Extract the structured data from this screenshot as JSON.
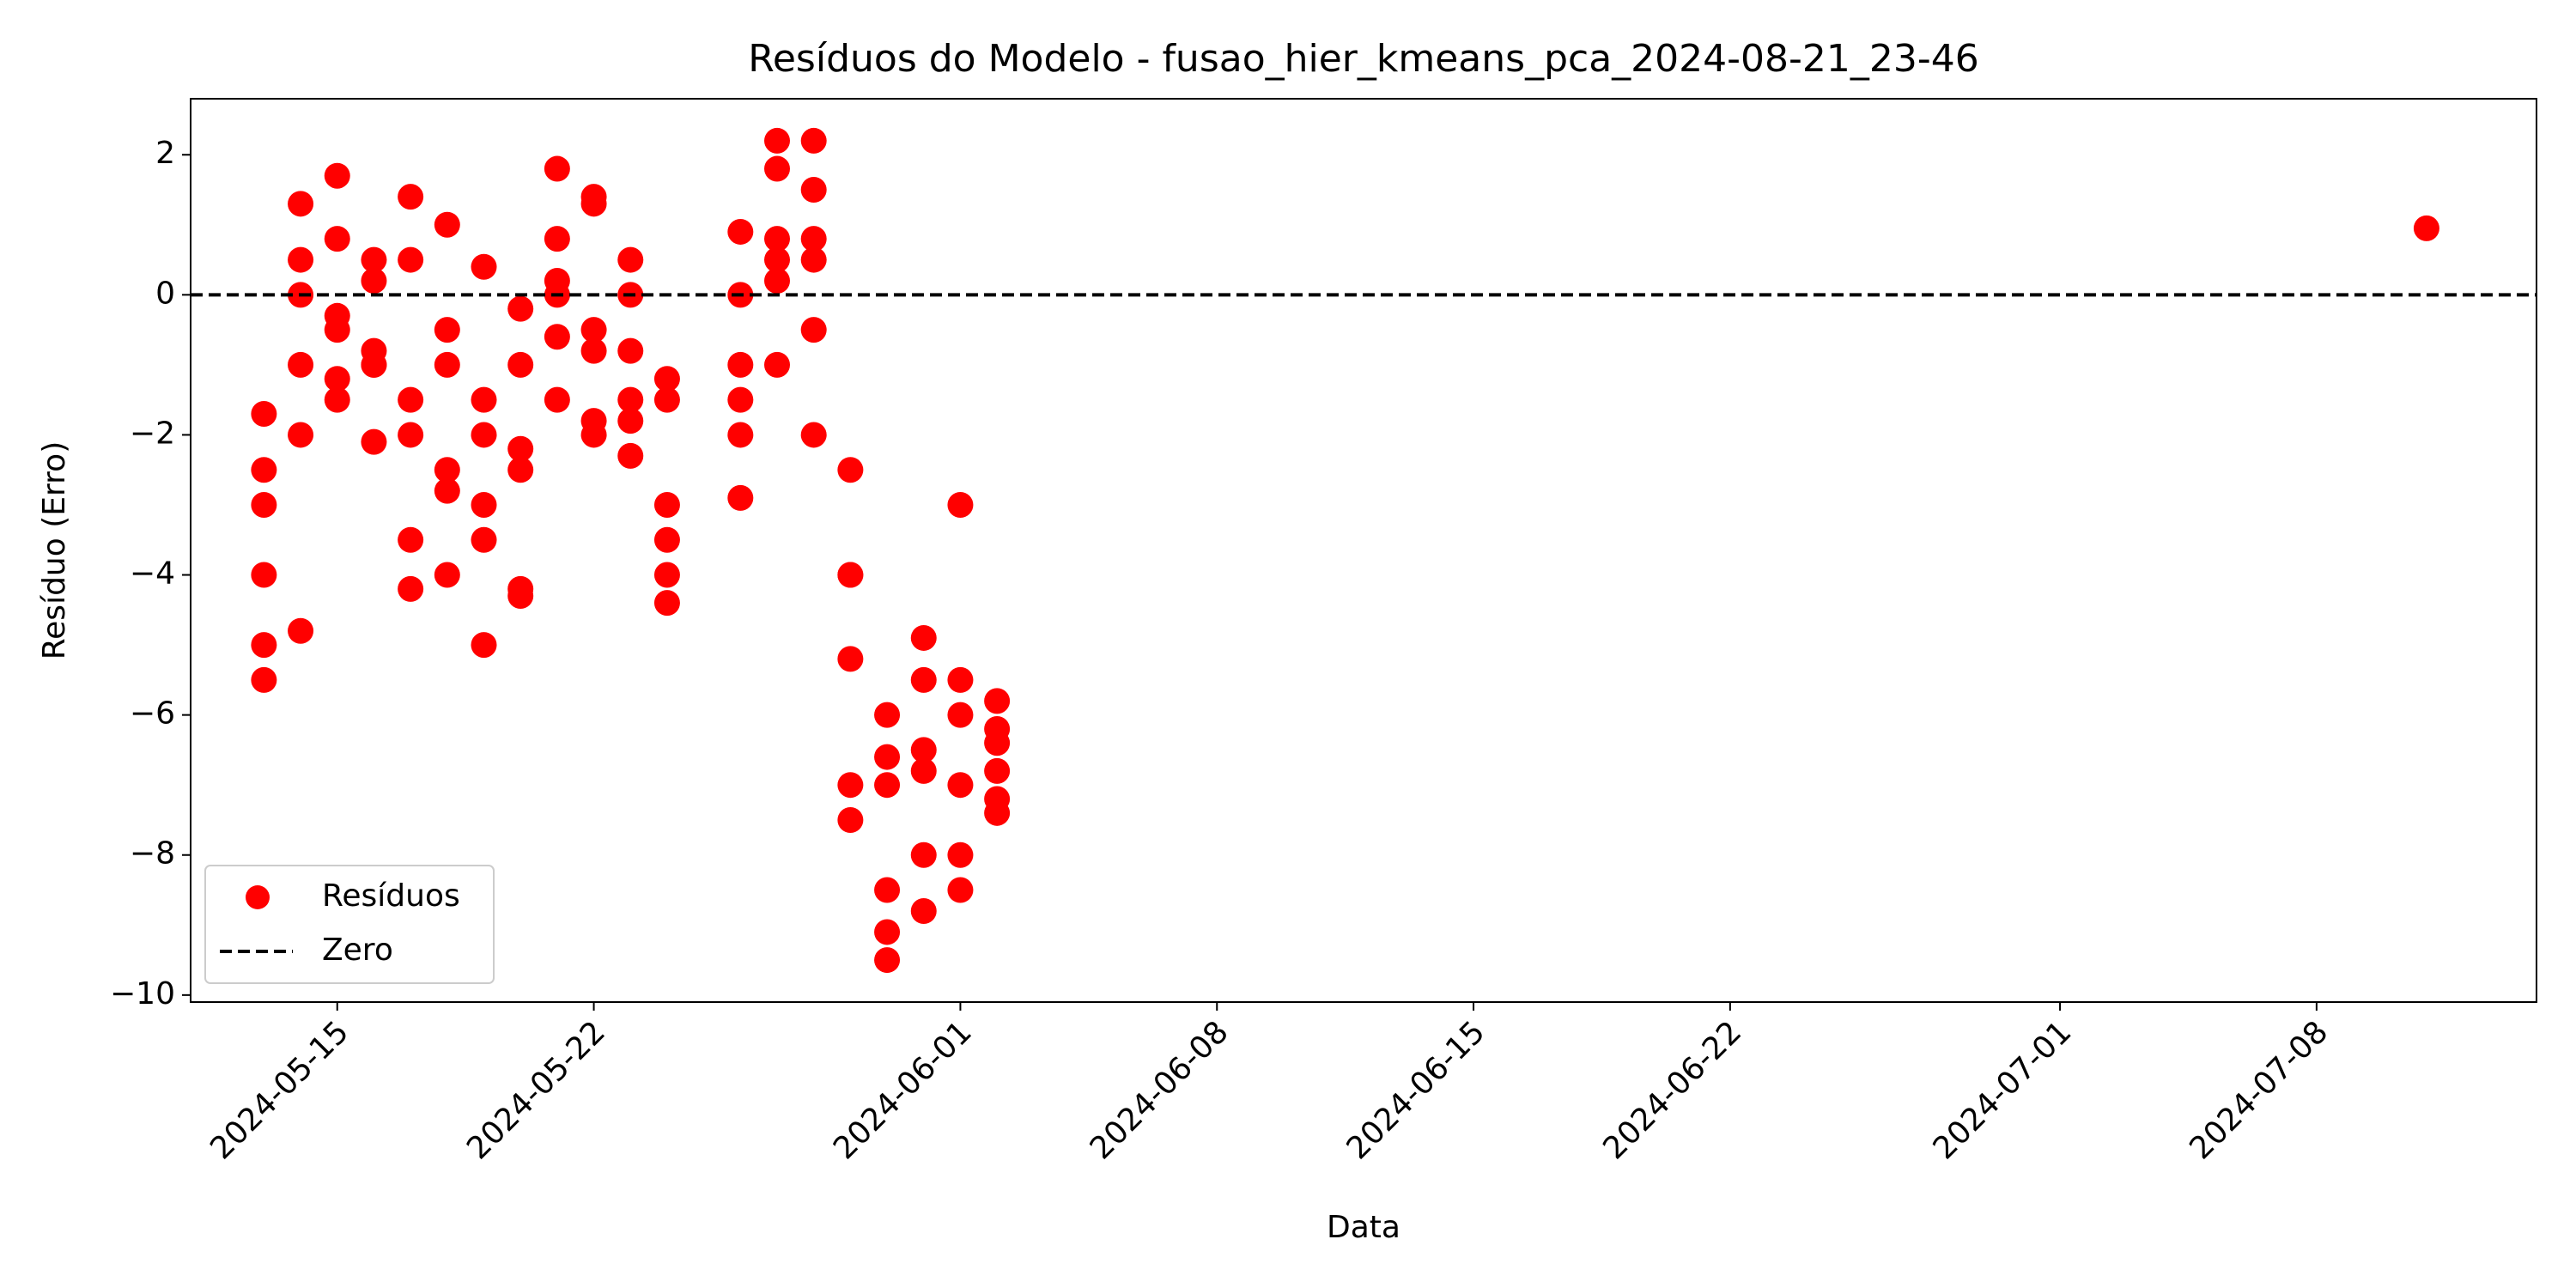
{
  "chart_data": {
    "type": "scatter",
    "title": "Resíduos do Modelo - fusao_hier_kmeans_pca_2024-08-21_23-46",
    "xlabel": "Data",
    "ylabel": "Resíduo (Erro)",
    "x": [
      "2024-05-13",
      "2024-05-13",
      "2024-05-13",
      "2024-05-13",
      "2024-05-13",
      "2024-05-13",
      "2024-05-14",
      "2024-05-14",
      "2024-05-14",
      "2024-05-14",
      "2024-05-14",
      "2024-05-14",
      "2024-05-15",
      "2024-05-15",
      "2024-05-15",
      "2024-05-15",
      "2024-05-15",
      "2024-05-15",
      "2024-05-16",
      "2024-05-16",
      "2024-05-16",
      "2024-05-16",
      "2024-05-16",
      "2024-05-16",
      "2024-05-17",
      "2024-05-17",
      "2024-05-17",
      "2024-05-17",
      "2024-05-17",
      "2024-05-17",
      "2024-05-18",
      "2024-05-18",
      "2024-05-18",
      "2024-05-18",
      "2024-05-18",
      "2024-05-18",
      "2024-05-19",
      "2024-05-19",
      "2024-05-19",
      "2024-05-19",
      "2024-05-19",
      "2024-05-19",
      "2024-05-20",
      "2024-05-20",
      "2024-05-20",
      "2024-05-20",
      "2024-05-20",
      "2024-05-20",
      "2024-05-21",
      "2024-05-21",
      "2024-05-21",
      "2024-05-21",
      "2024-05-21",
      "2024-05-21",
      "2024-05-22",
      "2024-05-22",
      "2024-05-22",
      "2024-05-22",
      "2024-05-22",
      "2024-05-22",
      "2024-05-23",
      "2024-05-23",
      "2024-05-23",
      "2024-05-23",
      "2024-05-23",
      "2024-05-23",
      "2024-05-24",
      "2024-05-24",
      "2024-05-24",
      "2024-05-24",
      "2024-05-24",
      "2024-05-24",
      "2024-05-26",
      "2024-05-26",
      "2024-05-26",
      "2024-05-26",
      "2024-05-26",
      "2024-05-26",
      "2024-05-27",
      "2024-05-27",
      "2024-05-27",
      "2024-05-27",
      "2024-05-27",
      "2024-05-27",
      "2024-05-28",
      "2024-05-28",
      "2024-05-28",
      "2024-05-28",
      "2024-05-28",
      "2024-05-28",
      "2024-05-29",
      "2024-05-29",
      "2024-05-29",
      "2024-05-29",
      "2024-05-29",
      "2024-05-29",
      "2024-05-30",
      "2024-05-30",
      "2024-05-30",
      "2024-05-30",
      "2024-05-30",
      "2024-05-30",
      "2024-05-31",
      "2024-05-31",
      "2024-05-31",
      "2024-05-31",
      "2024-05-31",
      "2024-05-31",
      "2024-06-01",
      "2024-06-01",
      "2024-06-01",
      "2024-06-01",
      "2024-06-01",
      "2024-06-01",
      "2024-06-02",
      "2024-06-02",
      "2024-06-02",
      "2024-06-02",
      "2024-06-02",
      "2024-06-02",
      "2024-07-11"
    ],
    "series": [
      {
        "name": "Resíduos",
        "color": "#ff0000",
        "values": [
          -1.7,
          -2.5,
          -4,
          -5.5,
          -5,
          -3,
          -4.8,
          -2,
          0,
          1.3,
          0.5,
          -1,
          -1.5,
          -0.5,
          1.7,
          0.8,
          -1.2,
          -0.3,
          -1,
          0.2,
          -2.1,
          -1,
          0.5,
          -0.8,
          1.4,
          0.5,
          -1.5,
          -3.5,
          -4.2,
          -2,
          -2.5,
          -0.5,
          1,
          -1,
          -2.8,
          -4,
          -5,
          -3,
          0.4,
          -1.5,
          -3.5,
          -2,
          -4.2,
          -2.5,
          -4.3,
          -1,
          -0.2,
          -2.2,
          0,
          -1.5,
          0.2,
          1.8,
          0.8,
          -0.6,
          1.4,
          -0.8,
          1.3,
          -1.8,
          -2,
          -0.5,
          0.5,
          -1.5,
          0,
          -2.3,
          -1.8,
          -0.8,
          -1.5,
          -4,
          -1.2,
          -3,
          -4.4,
          -3.5,
          0,
          -1,
          -2,
          -2.9,
          -1.5,
          0.9,
          0.5,
          -1,
          0.2,
          0.8,
          1.8,
          2.2,
          2.2,
          1.5,
          0.8,
          0.5,
          -0.5,
          -2,
          -2.5,
          -4,
          -5.2,
          -7,
          -7.5,
          -4,
          -6,
          -9.5,
          -6.6,
          -8.5,
          -9.1,
          -7,
          -6.8,
          -8,
          -4.9,
          -8.8,
          -6.5,
          -5.5,
          -8.5,
          -6,
          -3,
          -7,
          -5.5,
          -8,
          -6.2,
          -7.4,
          -6.8,
          -6.4,
          -7.2,
          -5.8,
          0.95
        ]
      }
    ],
    "reference_lines": [
      {
        "name": "Zero",
        "value": 0,
        "color": "#000000",
        "style": "dashed"
      }
    ],
    "xlim": [
      "2024-05-11",
      "2024-07-14"
    ],
    "xticks": [
      "2024-05-15",
      "2024-05-22",
      "2024-06-01",
      "2024-06-08",
      "2024-06-15",
      "2024-06-22",
      "2024-07-01",
      "2024-07-08"
    ],
    "ylim": [
      -10.1,
      2.8
    ],
    "yticks": [
      {
        "value": -10,
        "label": "−10"
      },
      {
        "value": -8,
        "label": "−8"
      },
      {
        "value": -6,
        "label": "−6"
      },
      {
        "value": -4,
        "label": "−4"
      },
      {
        "value": -2,
        "label": "−2"
      },
      0,
      2
    ],
    "grid": false,
    "legend": "lower left"
  }
}
